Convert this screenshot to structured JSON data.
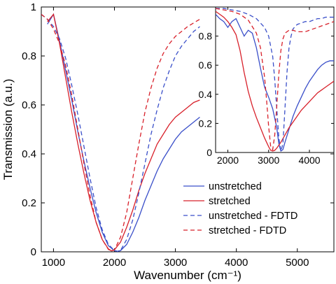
{
  "chart_data": [
    {
      "type": "line",
      "xlabel": "Wavenumber (cm⁻¹)",
      "ylabel": "Transmission (a.u.)",
      "xlim": [
        800,
        5600
      ],
      "ylim": [
        0,
        1
      ],
      "xticks": [
        "1000",
        "2000",
        "3000",
        "4000",
        "5000"
      ],
      "xtick_values": [
        1000,
        2000,
        3000,
        4000,
        5000
      ],
      "yticks": [
        "0",
        "0.2",
        "0.4",
        "0.6",
        "0.8",
        "1"
      ],
      "ytick_values": [
        0,
        0.2,
        0.4,
        0.6,
        0.8,
        1
      ],
      "grid": false,
      "legend_position": "bottom-right",
      "series": [
        {
          "name": "unstretched",
          "color": "#3a4fc9",
          "dash": "solid",
          "x": [
            900,
            1000,
            1100,
            1200,
            1300,
            1400,
            1500,
            1600,
            1700,
            1800,
            1900,
            2000,
            2050,
            2100,
            2200,
            2300,
            2400,
            2500,
            2600,
            2700,
            2800,
            2900,
            3000,
            3100,
            3200,
            3300,
            3400
          ],
          "y": [
            0.93,
            0.97,
            0.86,
            0.74,
            0.62,
            0.49,
            0.37,
            0.26,
            0.16,
            0.08,
            0.025,
            0.005,
            0.002,
            0.005,
            0.03,
            0.08,
            0.14,
            0.21,
            0.27,
            0.33,
            0.38,
            0.42,
            0.46,
            0.49,
            0.51,
            0.53,
            0.55
          ]
        },
        {
          "name": "stretched",
          "color": "#d8202a",
          "dash": "solid",
          "x": [
            900,
            1000,
            1100,
            1200,
            1300,
            1400,
            1500,
            1600,
            1700,
            1800,
            1900,
            1950,
            2000,
            2100,
            2200,
            2300,
            2400,
            2500,
            2600,
            2700,
            2800,
            2900,
            3000,
            3100,
            3200,
            3300,
            3400
          ],
          "y": [
            0.94,
            0.97,
            0.85,
            0.71,
            0.57,
            0.44,
            0.32,
            0.21,
            0.12,
            0.05,
            0.012,
            0.004,
            0.008,
            0.04,
            0.1,
            0.17,
            0.25,
            0.32,
            0.38,
            0.44,
            0.48,
            0.52,
            0.55,
            0.57,
            0.59,
            0.61,
            0.62
          ]
        },
        {
          "name": "unstretched - FDTD",
          "color": "#3a4fc9",
          "dash": "dashed",
          "x": [
            800,
            900,
            1000,
            1100,
            1200,
            1300,
            1400,
            1500,
            1600,
            1700,
            1800,
            1900,
            2000,
            2050,
            2100,
            2200,
            2300,
            2400,
            2500,
            2600,
            2700,
            2800,
            2900,
            3000,
            3100,
            3200,
            3300,
            3400
          ],
          "y": [
            0.97,
            0.95,
            0.92,
            0.87,
            0.79,
            0.68,
            0.56,
            0.43,
            0.3,
            0.18,
            0.09,
            0.03,
            0.005,
            0.002,
            0.006,
            0.05,
            0.13,
            0.24,
            0.36,
            0.48,
            0.58,
            0.67,
            0.74,
            0.8,
            0.84,
            0.87,
            0.9,
            0.92
          ]
        },
        {
          "name": "stretched - FDTD",
          "color": "#d8202a",
          "dash": "dashed",
          "x": [
            800,
            900,
            1000,
            1100,
            1200,
            1300,
            1400,
            1500,
            1600,
            1700,
            1800,
            1900,
            1950,
            2000,
            2100,
            2200,
            2300,
            2400,
            2500,
            2600,
            2700,
            2800,
            2900,
            3000,
            3100,
            3200,
            3300,
            3400
          ],
          "y": [
            0.97,
            0.95,
            0.91,
            0.85,
            0.76,
            0.64,
            0.5,
            0.36,
            0.23,
            0.12,
            0.05,
            0.01,
            0.003,
            0.008,
            0.06,
            0.16,
            0.3,
            0.44,
            0.57,
            0.67,
            0.75,
            0.81,
            0.85,
            0.88,
            0.9,
            0.92,
            0.935,
            0.95
          ]
        }
      ]
    },
    {
      "type": "line",
      "inset": true,
      "xlim": [
        1700,
        4600
      ],
      "ylim": [
        0,
        1
      ],
      "xticks": [
        "2000",
        "3000",
        "4000"
      ],
      "xtick_values": [
        2000,
        3000,
        4000
      ],
      "yticks": [
        "0",
        "0.2",
        "0.4",
        "0.6",
        "0.8"
      ],
      "ytick_values": [
        0,
        0.2,
        0.4,
        0.6,
        0.8
      ],
      "grid": false,
      "series": [
        {
          "name": "unstretched",
          "color": "#3a4fc9",
          "dash": "solid",
          "x": [
            1700,
            1800,
            1900,
            2000,
            2100,
            2200,
            2300,
            2400,
            2500,
            2600,
            2700,
            2800,
            2900,
            3000,
            3100,
            3200,
            3250,
            3300,
            3350,
            3400,
            3500,
            3600,
            3700,
            3800,
            3900,
            4000,
            4100,
            4200,
            4300,
            4400,
            4500,
            4600
          ],
          "y": [
            0.95,
            0.92,
            0.9,
            0.86,
            0.9,
            0.92,
            0.86,
            0.8,
            0.84,
            0.82,
            0.72,
            0.58,
            0.45,
            0.38,
            0.3,
            0.17,
            0.06,
            0.01,
            0.02,
            0.07,
            0.16,
            0.25,
            0.32,
            0.38,
            0.44,
            0.49,
            0.53,
            0.57,
            0.6,
            0.62,
            0.63,
            0.63
          ]
        },
        {
          "name": "stretched",
          "color": "#d8202a",
          "dash": "solid",
          "x": [
            1700,
            1800,
            1900,
            2000,
            2100,
            2200,
            2300,
            2400,
            2500,
            2600,
            2700,
            2800,
            2900,
            3000,
            3050,
            3100,
            3150,
            3200,
            3300,
            3400,
            3500,
            3600,
            3700,
            3800,
            3900,
            4000,
            4100,
            4200,
            4300,
            4400,
            4500,
            4600
          ],
          "y": [
            0.97,
            0.95,
            0.93,
            0.9,
            0.86,
            0.81,
            0.7,
            0.55,
            0.42,
            0.32,
            0.24,
            0.17,
            0.1,
            0.04,
            0.015,
            0.01,
            0.015,
            0.03,
            0.07,
            0.12,
            0.17,
            0.21,
            0.25,
            0.29,
            0.32,
            0.35,
            0.38,
            0.41,
            0.43,
            0.45,
            0.47,
            0.49
          ]
        },
        {
          "name": "unstretched - FDTD",
          "color": "#3a4fc9",
          "dash": "dashed",
          "x": [
            1700,
            1900,
            2100,
            2300,
            2500,
            2700,
            2900,
            3000,
            3100,
            3150,
            3200,
            3250,
            3300,
            3350,
            3400,
            3450,
            3500,
            3550,
            3600,
            3700,
            3800,
            3900,
            4000,
            4100,
            4200,
            4300,
            4400,
            4500,
            4600
          ],
          "y": [
            0.99,
            0.99,
            0.98,
            0.97,
            0.95,
            0.92,
            0.86,
            0.8,
            0.66,
            0.5,
            0.3,
            0.1,
            0.01,
            0.06,
            0.3,
            0.55,
            0.72,
            0.8,
            0.85,
            0.88,
            0.89,
            0.9,
            0.9,
            0.91,
            0.92,
            0.92,
            0.93,
            0.93,
            0.93
          ]
        },
        {
          "name": "stretched - FDTD",
          "color": "#d8202a",
          "dash": "dashed",
          "x": [
            1700,
            1900,
            2100,
            2300,
            2500,
            2700,
            2800,
            2900,
            2950,
            3000,
            3050,
            3100,
            3150,
            3200,
            3250,
            3300,
            3350,
            3400,
            3500,
            3600,
            3700,
            3800,
            3900,
            4000,
            4100,
            4200,
            4300,
            4400,
            4500,
            4600
          ],
          "y": [
            0.99,
            0.98,
            0.97,
            0.95,
            0.91,
            0.82,
            0.72,
            0.52,
            0.36,
            0.18,
            0.04,
            0.02,
            0.12,
            0.32,
            0.54,
            0.7,
            0.78,
            0.82,
            0.84,
            0.84,
            0.83,
            0.83,
            0.83,
            0.84,
            0.85,
            0.86,
            0.87,
            0.88,
            0.89,
            0.9
          ]
        }
      ]
    }
  ]
}
